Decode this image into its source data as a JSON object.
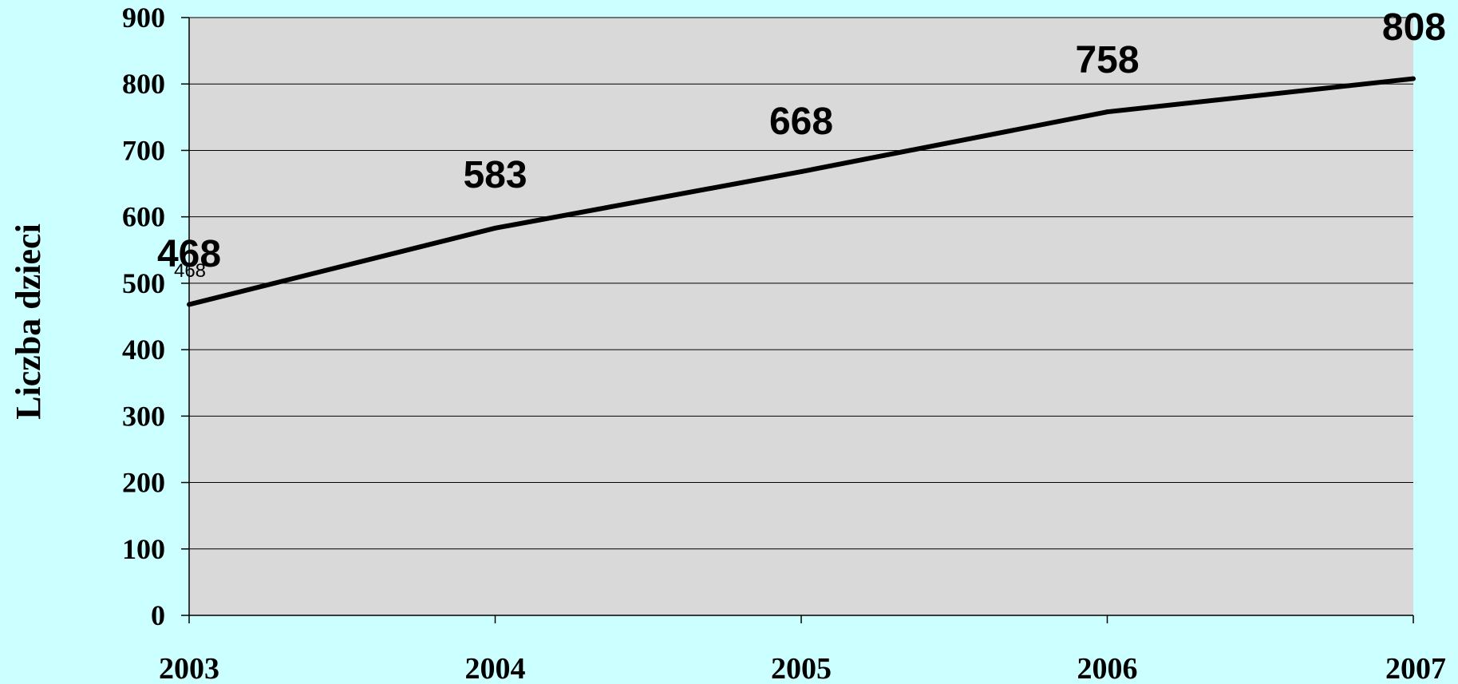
{
  "chart_data": {
    "type": "line",
    "categories": [
      "2003",
      "2004",
      "2005",
      "2006",
      "2007"
    ],
    "series": [
      {
        "values": [
          468,
          583,
          668,
          758,
          808
        ],
        "color": "#000000"
      }
    ],
    "data_labels": [
      "468",
      "583",
      "668",
      "758",
      "808"
    ],
    "secondary_label": "468",
    "ylabel": "Liczba dzieci",
    "xlabel": "",
    "ylim": [
      0,
      900
    ],
    "yticks": [
      "0",
      "100",
      "200",
      "300",
      "400",
      "500",
      "600",
      "700",
      "800",
      "900"
    ],
    "grid": true,
    "plot_background": "#d9d9d9",
    "page_background": "#ccffff"
  }
}
